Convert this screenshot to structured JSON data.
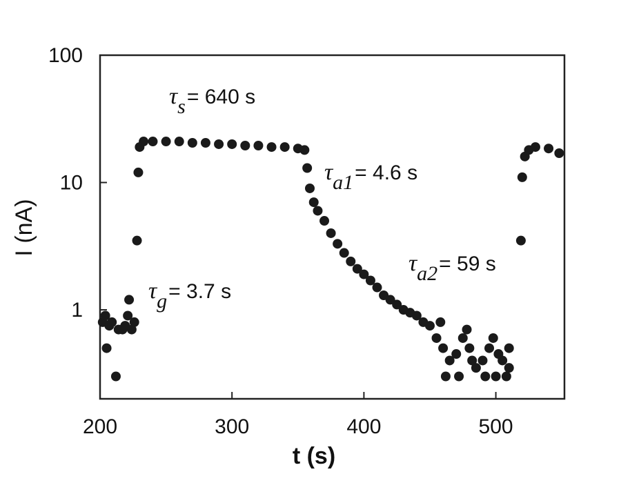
{
  "chart_data": {
    "type": "scatter",
    "x_label": "t (s)",
    "y_label": "I (nA)",
    "color": "#1a1a1a",
    "log_y": true,
    "xlim": [
      200,
      552
    ],
    "ylim": [
      0.2,
      100
    ],
    "xticks": [
      200,
      300,
      400,
      500
    ],
    "yticks": [
      1,
      10,
      100
    ],
    "x": [
      202,
      204,
      205,
      207,
      209,
      212,
      214,
      217,
      219,
      221,
      222,
      224,
      226,
      228,
      229,
      230,
      233,
      240,
      250,
      260,
      270,
      280,
      290,
      300,
      310,
      320,
      330,
      340,
      350,
      355,
      357,
      359,
      362,
      365,
      370,
      375,
      380,
      385,
      390,
      395,
      400,
      405,
      410,
      415,
      420,
      425,
      430,
      435,
      440,
      445,
      450,
      455,
      460,
      465,
      470,
      475,
      480,
      485,
      490,
      495,
      500,
      505,
      510,
      462,
      472,
      482,
      492,
      502,
      508,
      458,
      478,
      498,
      510,
      519,
      520,
      522,
      525,
      530,
      540,
      548
    ],
    "values": [
      0.8,
      0.9,
      0.5,
      0.75,
      0.8,
      0.3,
      0.7,
      0.7,
      0.75,
      0.9,
      1.2,
      0.7,
      0.8,
      3.5,
      12,
      19,
      21,
      21,
      21,
      21,
      20.5,
      20.5,
      20,
      20,
      19.5,
      19.5,
      19,
      19,
      18.5,
      18,
      13,
      9,
      7,
      6,
      5,
      4,
      3.3,
      2.8,
      2.4,
      2.1,
      1.9,
      1.7,
      1.5,
      1.3,
      1.2,
      1.1,
      1,
      0.95,
      0.9,
      0.8,
      0.75,
      0.6,
      0.5,
      0.4,
      0.45,
      0.6,
      0.5,
      0.35,
      0.4,
      0.5,
      0.3,
      0.4,
      0.35,
      0.3,
      0.3,
      0.4,
      0.3,
      0.45,
      0.3,
      0.8,
      0.7,
      0.6,
      0.5,
      3.5,
      11,
      16,
      18,
      19,
      18.5,
      17
    ],
    "annotations": [
      {
        "symbol": "τ",
        "sub": "s",
        "text": "= 640 s"
      },
      {
        "symbol": "τ",
        "sub": "a1",
        "text": "= 4.6 s"
      },
      {
        "symbol": "τ",
        "sub": "a2",
        "text": "= 59 s"
      },
      {
        "symbol": "τ",
        "sub": "g",
        "text": "= 3.7 s"
      }
    ]
  }
}
